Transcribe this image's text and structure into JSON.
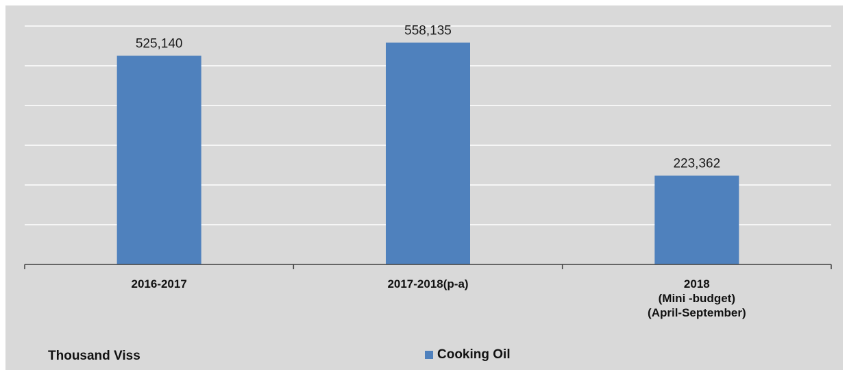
{
  "chart_data": {
    "type": "bar",
    "categories": [
      [
        "2016-2017"
      ],
      [
        "2017-2018(p-a)"
      ],
      [
        "2018",
        "(Mini -budget)",
        "(April-September)"
      ]
    ],
    "series": [
      {
        "name": "Cooking Oil",
        "values": [
          525140,
          558135,
          223362
        ],
        "value_labels": [
          "525,140",
          "558,135",
          "223,362"
        ]
      }
    ],
    "unit_label": "Thousand Viss",
    "ylim": [
      0,
      600000
    ],
    "y_gridline_step": 100000,
    "grid": true,
    "legend_placement": "bottom-center",
    "colors": {
      "bar": "#4f81bd",
      "background": "#d9d9d9",
      "gridline": "#ffffff",
      "axis": "#404040"
    }
  }
}
